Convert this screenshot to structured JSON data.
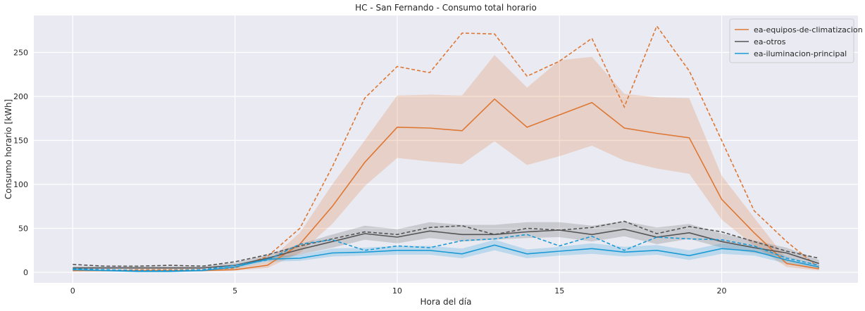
{
  "chart_data": {
    "type": "line",
    "title": "HC - San Fernando - Consumo total horario",
    "xlabel": "Hora del día",
    "ylabel": "Consumo horario [kWh]",
    "xlim": [
      -1.2,
      24.2
    ],
    "ylim": [
      -12,
      292
    ],
    "xticks": [
      0,
      5,
      10,
      15,
      20
    ],
    "yticks": [
      0,
      50,
      100,
      150,
      200,
      250
    ],
    "grid": true,
    "legend_position": "top-right",
    "x": [
      0,
      1,
      2,
      3,
      4,
      5,
      6,
      7,
      8,
      9,
      10,
      11,
      12,
      13,
      14,
      15,
      16,
      17,
      18,
      19,
      20,
      21,
      22,
      23
    ],
    "series": [
      {
        "name": "ea-equipos-de-climatizacion",
        "color": "#dd7733",
        "mean": [
          2,
          2,
          2,
          2,
          2,
          3,
          8,
          32,
          75,
          125,
          165,
          164,
          161,
          197,
          165,
          179,
          193,
          164,
          158,
          153,
          83,
          45,
          10,
          4
        ],
        "band_low": [
          1,
          1,
          1,
          1,
          1,
          2,
          5,
          22,
          55,
          98,
          130,
          126,
          123,
          149,
          122,
          132,
          144,
          127,
          118,
          112,
          60,
          30,
          6,
          2
        ],
        "band_high": [
          3,
          3,
          3,
          3,
          3,
          5,
          12,
          45,
          100,
          150,
          201,
          202,
          201,
          247,
          210,
          241,
          245,
          203,
          199,
          198,
          110,
          62,
          15,
          7
        ],
        "max": [
          2,
          2,
          3,
          3,
          3,
          5,
          18,
          50,
          120,
          198,
          234,
          227,
          272,
          271,
          223,
          240,
          266,
          188,
          280,
          229,
          150,
          70,
          35,
          5
        ]
      },
      {
        "name": "ea-otros",
        "color": "#555555",
        "mean": [
          5,
          5,
          5,
          5,
          5,
          8,
          16,
          26,
          35,
          44,
          40,
          47,
          43,
          43,
          46,
          48,
          43,
          49,
          40,
          45,
          35,
          28,
          22,
          10
        ],
        "band_low": [
          4,
          4,
          4,
          4,
          4,
          6,
          13,
          20,
          28,
          37,
          33,
          39,
          35,
          37,
          39,
          40,
          35,
          41,
          32,
          38,
          28,
          22,
          17,
          7
        ],
        "band_high": [
          7,
          7,
          7,
          7,
          7,
          11,
          20,
          32,
          43,
          53,
          49,
          57,
          54,
          54,
          57,
          57,
          53,
          58,
          51,
          55,
          44,
          36,
          28,
          14
        ],
        "max": [
          9,
          7,
          7,
          8,
          7,
          12,
          20,
          30,
          38,
          46,
          43,
          51,
          53,
          43,
          50,
          48,
          51,
          58,
          44,
          52,
          46,
          35,
          24,
          16
        ]
      },
      {
        "name": "ea-iluminacion-principal",
        "color": "#1a9ad5",
        "mean": [
          3,
          2,
          1,
          1,
          2,
          6,
          15,
          16,
          22,
          23,
          25,
          25,
          21,
          31,
          21,
          24,
          27,
          23,
          25,
          19,
          27,
          24,
          14,
          6
        ],
        "band_low": [
          2,
          1,
          1,
          1,
          1,
          4,
          12,
          13,
          18,
          19,
          20,
          20,
          16,
          25,
          16,
          19,
          21,
          18,
          20,
          14,
          21,
          19,
          10,
          4
        ],
        "band_high": [
          4,
          3,
          2,
          2,
          3,
          8,
          18,
          20,
          27,
          28,
          30,
          30,
          27,
          37,
          26,
          29,
          33,
          29,
          31,
          25,
          33,
          30,
          18,
          8
        ],
        "max": [
          4,
          3,
          2,
          2,
          3,
          8,
          14,
          32,
          37,
          25,
          30,
          28,
          36,
          38,
          43,
          30,
          41,
          25,
          40,
          38,
          37,
          30,
          16,
          8
        ]
      }
    ]
  }
}
